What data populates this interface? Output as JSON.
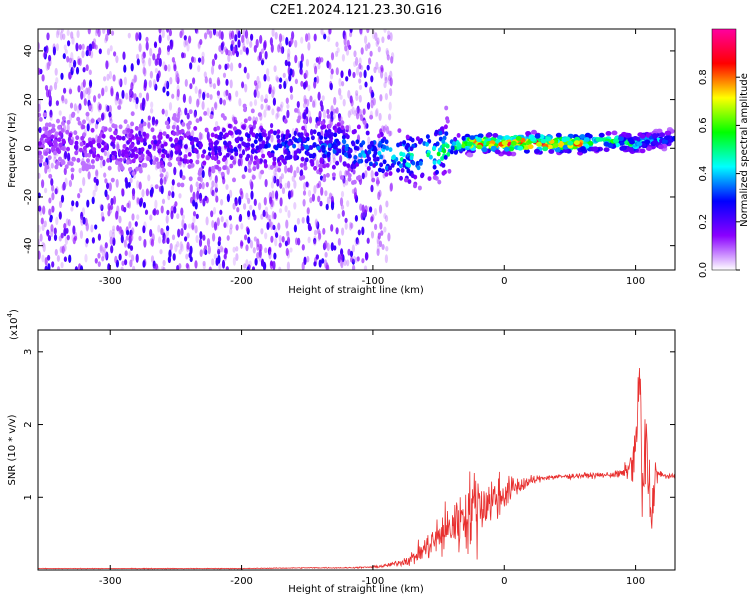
{
  "figure": {
    "title": "C2E1.2024.121.23.30.G16"
  },
  "chart_data": [
    {
      "type": "heatmap",
      "title": "C2E1.2024.121.23.30.G16",
      "xlabel": "Height of straight line (km)",
      "ylabel": "Frequency (Hz)",
      "xlim": [
        -355,
        130
      ],
      "ylim": [
        -50,
        49
      ],
      "x_ticks": [
        -300,
        -200,
        -100,
        0,
        100
      ],
      "x_tick_labels": [
        "-300",
        "-200",
        "-100",
        "0",
        "100"
      ],
      "y_ticks": [
        -40,
        -20,
        0,
        20,
        40
      ],
      "y_tick_labels": [
        "-40",
        "-20",
        "0",
        "20",
        "40"
      ],
      "colorbar": {
        "label": "Normalized spectral amplitude",
        "range": [
          0.0,
          1.0
        ],
        "ticks": [
          0.0,
          0.2,
          0.4,
          0.6,
          0.8
        ],
        "tick_labels": [
          "0.0",
          "0.2",
          "0.4",
          "0.6",
          "0.8"
        ],
        "colors": [
          "#ffffff",
          "#8a00ff",
          "#0000ff",
          "#00ffff",
          "#00ff00",
          "#ffff00",
          "#ff0000",
          "#ff00a0"
        ]
      },
      "ridge": {
        "x": [
          -355,
          -300,
          -250,
          -200,
          -150,
          -120,
          -100,
          -80,
          -60,
          -40,
          -30,
          -20,
          0,
          20,
          40,
          60,
          80,
          100,
          110,
          130
        ],
        "y": [
          3,
          1,
          0,
          2,
          1,
          0,
          -2,
          -4,
          -3,
          1,
          2,
          2,
          2,
          2,
          2,
          2,
          3,
          2,
          3,
          4
        ],
        "amplitude": [
          0.15,
          0.2,
          0.25,
          0.3,
          0.35,
          0.4,
          0.45,
          0.5,
          0.55,
          0.6,
          0.75,
          0.9,
          0.95,
          0.95,
          0.9,
          0.85,
          0.6,
          0.55,
          0.45,
          0.4
        ]
      },
      "noise_extent_x": [
        -355,
        -100
      ],
      "grid": false
    },
    {
      "type": "line",
      "title": "",
      "xlabel": "Height of straight line (km)",
      "ylabel": "SNR (10 * v/v)",
      "y_multiplier_label": "(x10",
      "y_multiplier_exponent": "4",
      "xlim": [
        -355,
        130
      ],
      "ylim": [
        0,
        3.3
      ],
      "x_ticks": [
        -300,
        -200,
        -100,
        0,
        100
      ],
      "x_tick_labels": [
        "-300",
        "-200",
        "-100",
        "0",
        "100"
      ],
      "y_ticks": [
        1,
        2,
        3
      ],
      "y_tick_labels": [
        "1",
        "2",
        "3"
      ],
      "color": "#e8302f",
      "series": [
        {
          "x": [
            -355,
            -300,
            -250,
            -200,
            -150,
            -120,
            -100,
            -90,
            -80,
            -70,
            -60,
            -50,
            -40,
            -30,
            -20,
            -10,
            0,
            10,
            20,
            30,
            40,
            50,
            60,
            70,
            80,
            90,
            95,
            100,
            103,
            105,
            108,
            112,
            115,
            120,
            130
          ],
          "y": [
            0.02,
            0.02,
            0.02,
            0.02,
            0.03,
            0.03,
            0.04,
            0.06,
            0.1,
            0.16,
            0.3,
            0.45,
            0.6,
            0.75,
            0.9,
            0.95,
            1.05,
            1.15,
            1.22,
            1.27,
            1.28,
            1.29,
            1.3,
            1.3,
            1.31,
            1.32,
            1.4,
            1.6,
            2.8,
            1.0,
            1.7,
            0.7,
            1.35,
            1.3,
            1.28
          ],
          "noise": [
            0.003,
            0.003,
            0.004,
            0.004,
            0.005,
            0.006,
            0.01,
            0.02,
            0.04,
            0.08,
            0.15,
            0.25,
            0.3,
            0.4,
            0.45,
            0.3,
            0.2,
            0.12,
            0.06,
            0.03,
            0.03,
            0.03,
            0.03,
            0.03,
            0.03,
            0.06,
            0.12,
            0.3,
            0.45,
            0.5,
            0.5,
            0.4,
            0.15,
            0.03,
            0.02
          ]
        }
      ],
      "grid": false
    }
  ]
}
